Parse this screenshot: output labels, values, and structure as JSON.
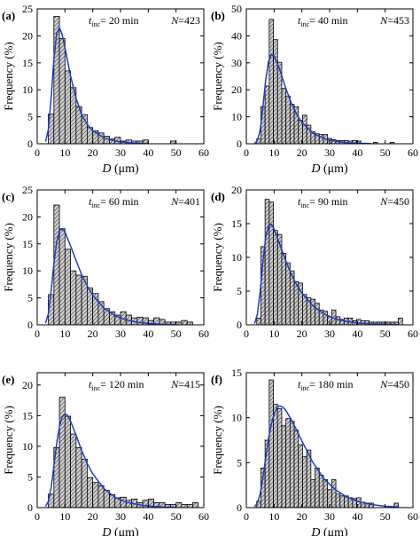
{
  "figure": {
    "colors": {
      "axis": "#000000",
      "bar_fill": "#d0d0d0",
      "hatch": "#2a2a2a",
      "fit_curve": "#1f3cc8",
      "background": "#ffffff"
    },
    "x_ticks": [
      0,
      10,
      20,
      30,
      40,
      50,
      60
    ]
  },
  "chart_data": [
    {
      "type": "bar",
      "panel_label": "(a)",
      "annotation_t_prefix": "t",
      "annotation_t_sub": "inc",
      "annotation_t_value": "= 20 min",
      "annotation_n_prefix": "N",
      "annotation_n_value": "=423",
      "xlabel_italic": "D",
      "xlabel_unit": " (μm)",
      "ylabel": "Frequency (%)",
      "xlim": [
        0,
        60
      ],
      "ylim": [
        0,
        25
      ],
      "y_ticks": [
        0,
        5,
        10,
        15,
        20,
        25
      ],
      "bin_width": 2,
      "x": [
        5,
        7,
        9,
        11,
        13,
        15,
        17,
        19,
        21,
        23,
        25,
        27,
        29,
        31,
        33,
        35,
        37,
        39,
        49
      ],
      "values": [
        5.5,
        23.6,
        19.5,
        13.5,
        10.4,
        6.9,
        5.4,
        3.0,
        2.4,
        2.0,
        1.4,
        0.9,
        1.2,
        0.5,
        0.7,
        0.5,
        0.5,
        0.7,
        0.5
      ],
      "fit_curve": {
        "x": [
          3,
          4,
          5,
          6,
          7,
          8,
          9,
          10,
          12,
          14,
          16,
          18,
          20,
          24,
          28,
          32,
          36,
          40
        ],
        "y": [
          0.4,
          2.6,
          8.4,
          15.6,
          20.4,
          21.5,
          20.2,
          17.8,
          12.6,
          8.4,
          5.4,
          3.6,
          2.4,
          1.1,
          0.5,
          0.25,
          0.1,
          0.05
        ]
      }
    },
    {
      "type": "bar",
      "panel_label": "(b)",
      "annotation_t_prefix": "t",
      "annotation_t_sub": "inc",
      "annotation_t_value": "= 40 min",
      "annotation_n_prefix": "N",
      "annotation_n_value": "=453",
      "xlabel_italic": "D",
      "xlabel_unit": " (μm)",
      "ylabel": "Frequency (%)",
      "xlim": [
        0,
        60
      ],
      "ylim": [
        0,
        50
      ],
      "y_ticks": [
        0,
        10,
        20,
        30,
        40,
        50
      ],
      "bin_width": 1.5,
      "x": [
        4.5,
        6,
        7.5,
        9,
        10.5,
        12,
        13.5,
        15,
        16.5,
        18,
        19.5,
        21,
        22.5,
        24,
        25.5,
        27,
        28.5,
        30,
        31.5,
        33,
        34.5,
        36,
        37.5,
        39,
        40.5,
        46.5,
        52.5
      ],
      "values": [
        1.8,
        13.8,
        21.4,
        46.1,
        38.6,
        30.2,
        20.5,
        17.7,
        14.6,
        13.7,
        8.7,
        10.6,
        6.9,
        4.4,
        3.7,
        3.4,
        3.4,
        2.0,
        1.5,
        1.2,
        1.2,
        1.2,
        1.0,
        1.2,
        1.0,
        0.5,
        0.5
      ],
      "fit_curve": {
        "x": [
          3,
          4,
          5,
          6,
          7,
          8,
          9,
          10,
          12,
          14,
          16,
          18,
          20,
          24,
          28,
          32,
          36,
          40,
          45
        ],
        "y": [
          0.1,
          1.2,
          5.2,
          13.8,
          23.8,
          30.6,
          33.1,
          32.6,
          27.6,
          21.2,
          15.6,
          11.2,
          7.9,
          3.9,
          1.9,
          0.9,
          0.45,
          0.2,
          0.1
        ]
      }
    },
    {
      "type": "bar",
      "panel_label": "(c)",
      "annotation_t_prefix": "t",
      "annotation_t_sub": "inc",
      "annotation_t_value": "= 60 min",
      "annotation_n_prefix": "N",
      "annotation_n_value": "=401",
      "xlabel_italic": "",
      "xlabel_unit": "",
      "ylabel": "Frequency (%)",
      "xlim": [
        0,
        60
      ],
      "ylim": [
        0,
        25
      ],
      "y_ticks": [
        0,
        5,
        10,
        15,
        20,
        25
      ],
      "bin_width": 2,
      "x": [
        5,
        7,
        9,
        11,
        13,
        15,
        17,
        19,
        21,
        23,
        25,
        27,
        29,
        31,
        33,
        35,
        37,
        39,
        41,
        43,
        45,
        47,
        49,
        51,
        53,
        55
      ],
      "values": [
        5.6,
        22.2,
        17.8,
        14.0,
        10.0,
        9.2,
        9.0,
        6.8,
        5.8,
        4.3,
        3.0,
        2.4,
        1.8,
        2.4,
        1.8,
        1.3,
        1.4,
        1.3,
        0.8,
        1.3,
        1.0,
        0.5,
        0.5,
        0.5,
        0.8,
        0.5
      ],
      "fit_curve": {
        "x": [
          3,
          4,
          5,
          6,
          7,
          8,
          9,
          10,
          12,
          14,
          16,
          18,
          20,
          24,
          28,
          32,
          36,
          40,
          45,
          50
        ],
        "y": [
          0.3,
          2.0,
          6.2,
          11.3,
          15.3,
          17.4,
          17.8,
          17.2,
          14.6,
          11.9,
          9.3,
          7.2,
          5.5,
          3.1,
          1.7,
          0.9,
          0.5,
          0.25,
          0.1,
          0.05
        ]
      }
    },
    {
      "type": "bar",
      "panel_label": "(d)",
      "annotation_t_prefix": "t",
      "annotation_t_sub": "inc",
      "annotation_t_value": "= 90 min",
      "annotation_n_prefix": "N",
      "annotation_n_value": "=450",
      "xlabel_italic": "",
      "xlabel_unit": "",
      "ylabel": "Frequency (%)",
      "xlim": [
        0,
        60
      ],
      "ylim": [
        0,
        20
      ],
      "y_ticks": [
        0,
        5,
        10,
        15,
        20
      ],
      "bin_width": 1.5,
      "x": [
        4.5,
        6,
        7.5,
        9,
        10.5,
        12,
        13.5,
        15,
        16.5,
        18,
        19.5,
        21,
        22.5,
        24,
        25.5,
        27,
        28.5,
        30,
        31.5,
        33,
        34.5,
        36,
        37.5,
        39,
        40.5,
        42,
        43.5,
        45,
        46.5,
        48,
        49.5,
        51,
        52.5,
        54,
        55.5
      ],
      "values": [
        1.0,
        11.6,
        18.6,
        18.2,
        14.0,
        13.4,
        10.6,
        9.2,
        8.0,
        6.4,
        6.2,
        4.5,
        4.0,
        3.8,
        3.2,
        2.2,
        2.0,
        1.2,
        2.2,
        1.2,
        0.8,
        1.0,
        1.0,
        0.6,
        0.8,
        0.6,
        0.6,
        0.4,
        0.4,
        0.4,
        0.4,
        0.4,
        0.4,
        0.4,
        1.0
      ],
      "fit_curve": {
        "x": [
          3,
          4,
          5,
          6,
          7,
          8,
          9,
          10,
          12,
          14,
          16,
          18,
          20,
          24,
          28,
          32,
          36,
          40,
          45,
          50,
          55
        ],
        "y": [
          0.2,
          1.6,
          5.0,
          9.5,
          13.0,
          14.6,
          14.9,
          14.2,
          12.0,
          9.7,
          7.7,
          6.0,
          4.7,
          2.8,
          1.6,
          0.9,
          0.5,
          0.3,
          0.15,
          0.07,
          0.03
        ]
      }
    },
    {
      "type": "bar",
      "panel_label": "(e)",
      "annotation_t_prefix": "t",
      "annotation_t_sub": "inc",
      "annotation_t_value": "= 120 min",
      "annotation_n_prefix": "N",
      "annotation_n_value": "=415",
      "xlabel_italic": "D",
      "xlabel_unit": " (μm)",
      "ylabel": "Frequency (%)",
      "xlim": [
        0,
        60
      ],
      "ylim": [
        0,
        22
      ],
      "y_ticks": [
        0,
        5,
        10,
        15,
        20
      ],
      "bin_width": 2,
      "x": [
        5,
        7,
        9,
        11,
        13,
        15,
        17,
        19,
        21,
        23,
        25,
        27,
        29,
        31,
        33,
        35,
        37,
        39,
        41,
        43,
        45,
        47,
        49,
        51,
        53,
        55,
        57
      ],
      "values": [
        2.2,
        9.8,
        18.0,
        14.9,
        12.0,
        9.8,
        7.9,
        4.9,
        4.1,
        3.6,
        2.8,
        2.1,
        1.6,
        1.7,
        1.2,
        1.4,
        0.8,
        1.2,
        1.4,
        0.8,
        0.8,
        0.5,
        0.5,
        0.8,
        0.5,
        0.5,
        0.8
      ],
      "fit_curve": {
        "x": [
          3,
          4,
          5,
          6,
          7,
          8,
          9,
          10,
          11,
          12,
          14,
          16,
          18,
          20,
          24,
          28,
          32,
          36,
          40,
          45,
          50
        ],
        "y": [
          0.2,
          1.0,
          3.2,
          6.8,
          10.4,
          13.2,
          14.8,
          15.3,
          15.0,
          14.1,
          11.8,
          9.3,
          7.2,
          5.5,
          3.1,
          1.7,
          0.9,
          0.5,
          0.25,
          0.1,
          0.05
        ]
      }
    },
    {
      "type": "bar",
      "panel_label": "(f)",
      "annotation_t_prefix": "t",
      "annotation_t_sub": "inc",
      "annotation_t_value": "= 180 min",
      "annotation_n_prefix": "N",
      "annotation_n_value": "=450",
      "xlabel_italic": "D",
      "xlabel_unit": " (μm)",
      "ylabel": "Frequency (%)",
      "xlim": [
        0,
        60
      ],
      "ylim": [
        0,
        15
      ],
      "y_ticks": [
        0,
        5,
        10,
        15
      ],
      "bin_width": 1.5,
      "x": [
        4.5,
        6,
        7.5,
        9,
        10.5,
        12,
        13.5,
        15,
        16.5,
        18,
        19.5,
        21,
        22.5,
        24,
        25.5,
        27,
        28.5,
        30,
        31.5,
        33,
        34.5,
        36,
        37.5,
        39,
        40.5,
        42,
        43.5,
        45,
        54
      ],
      "values": [
        0.7,
        4.4,
        7.5,
        14.2,
        11.5,
        11.0,
        9.1,
        9.9,
        9.6,
        8.6,
        7.0,
        5.7,
        6.4,
        3.1,
        4.4,
        3.6,
        3.1,
        2.0,
        3.1,
        1.5,
        1.3,
        1.3,
        1.1,
        1.0,
        1.1,
        0.6,
        0.5,
        0.5,
        0.5
      ],
      "fit_curve": {
        "x": [
          3,
          4,
          5,
          6,
          7,
          8,
          9,
          10,
          11,
          12,
          13,
          14,
          16,
          18,
          20,
          24,
          28,
          32,
          36,
          40,
          45,
          50,
          55
        ],
        "y": [
          0.1,
          0.5,
          1.6,
          3.4,
          5.6,
          7.7,
          9.3,
          10.4,
          11.1,
          11.3,
          11.2,
          10.9,
          9.9,
          8.7,
          7.4,
          5.0,
          3.2,
          2.0,
          1.2,
          0.7,
          0.35,
          0.15,
          0.07
        ]
      }
    }
  ]
}
